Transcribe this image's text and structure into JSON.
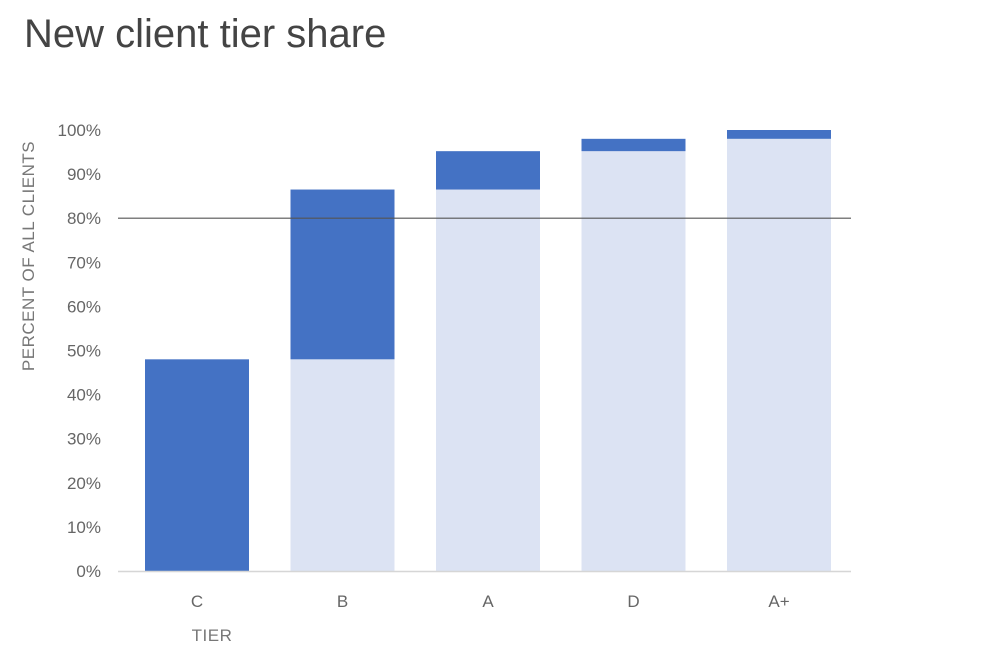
{
  "title": "New client tier share",
  "chart_data": {
    "type": "bar",
    "stacked": true,
    "title": "New client tier share",
    "xlabel": "TIER",
    "ylabel": "PERCENT OF ALL CLIENTS",
    "categories": [
      "C",
      "B",
      "A",
      "D",
      "A+"
    ],
    "series": [
      {
        "role": "cumulative-base",
        "values": [
          0,
          48,
          86.5,
          95.2,
          98
        ],
        "color": "#dce3f3"
      },
      {
        "role": "tier-share",
        "values": [
          48,
          38.5,
          8.7,
          2.8,
          2
        ],
        "color": "#4472c4"
      }
    ],
    "ylim": [
      0,
      100
    ],
    "yticks": [
      "0%",
      "10%",
      "20%",
      "30%",
      "40%",
      "50%",
      "60%",
      "70%",
      "80%",
      "90%",
      "100%"
    ],
    "reference_line": 80,
    "grid": false,
    "legend": "none"
  }
}
